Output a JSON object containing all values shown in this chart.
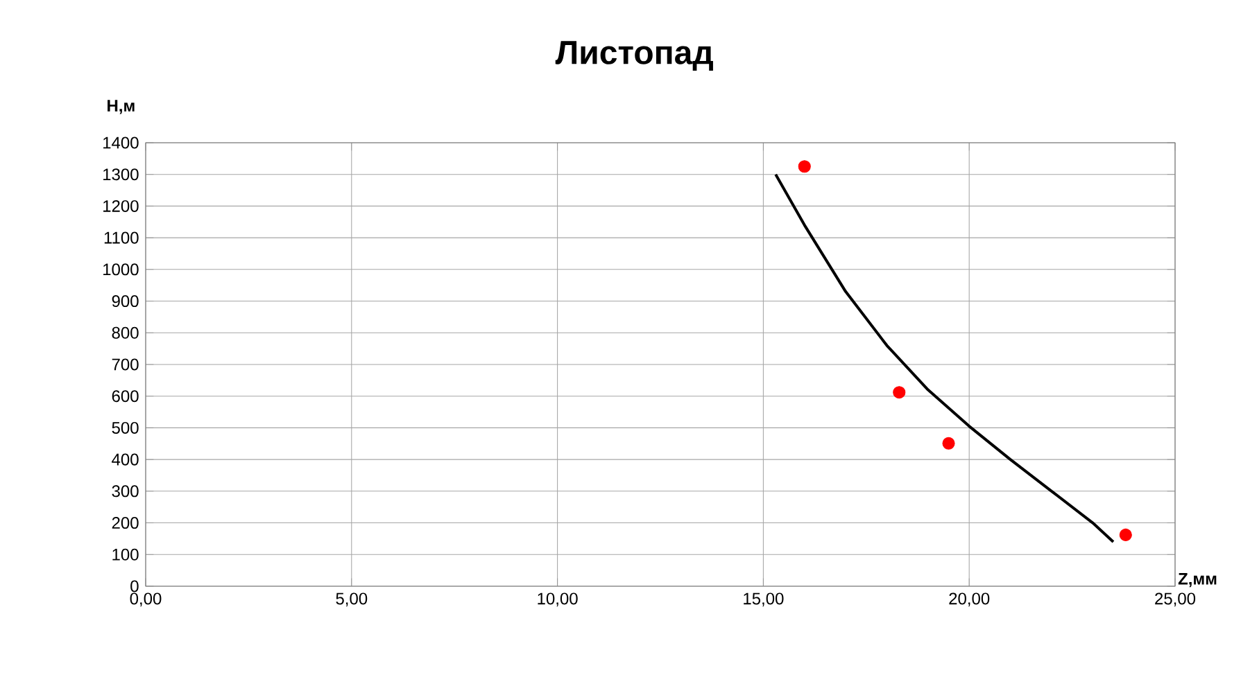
{
  "chart_data": {
    "type": "scatter",
    "title": "Листопад",
    "xlabel": "Z,мм",
    "ylabel": "Н,м",
    "xlim": [
      0,
      25
    ],
    "ylim": [
      0,
      1400
    ],
    "xticks": [
      {
        "value": 0,
        "label": "0,00"
      },
      {
        "value": 5,
        "label": "5,00"
      },
      {
        "value": 10,
        "label": "10,00"
      },
      {
        "value": 15,
        "label": "15,00"
      },
      {
        "value": 20,
        "label": "20,00"
      },
      {
        "value": 25,
        "label": "25,00"
      }
    ],
    "yticks": [
      0,
      100,
      200,
      300,
      400,
      500,
      600,
      700,
      800,
      900,
      1000,
      1100,
      1200,
      1300,
      1400
    ],
    "grid": true,
    "series": [
      {
        "color": "#ff0000",
        "marker": "circle",
        "x": [
          16.0,
          18.3,
          19.5,
          23.8
        ],
        "values": [
          1325,
          612,
          451,
          162
        ]
      },
      {
        "type": "line",
        "color": "#000000",
        "marker": "none",
        "line_style": "solid",
        "x": [
          15.3,
          16.0,
          17.0,
          18.0,
          19.0,
          20.0,
          21.0,
          22.0,
          23.0,
          23.5
        ],
        "values": [
          1300,
          1140,
          930,
          760,
          620,
          505,
          400,
          300,
          200,
          140
        ]
      }
    ]
  }
}
